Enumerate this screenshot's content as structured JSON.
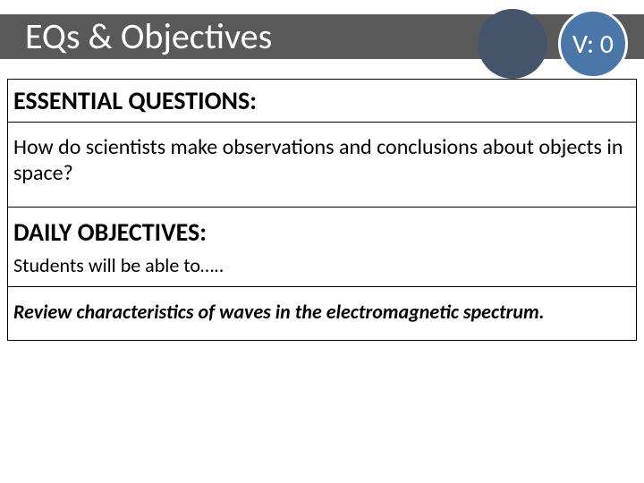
{
  "header": {
    "title": "EQs & Objectives",
    "badge_text": "V: 0",
    "bar_color": "#595959",
    "circle_dark_color": "#44546a",
    "circle_blue_color": "#4a76a8",
    "circle_border_color": "#ffffff",
    "title_color": "#ffffff",
    "title_fontsize": 40,
    "badge_fontsize": 30
  },
  "sections": {
    "eq_header": "ESSENTIAL QUESTIONS:",
    "eq_body": "How do scientists make observations and conclusions about objects in space?",
    "obj_header": "DAILY OBJECTIVES:",
    "obj_sub": "Students will be able to…..",
    "obj_body": "Review characteristics of waves in the electromagnetic spectrum."
  },
  "style": {
    "border_color": "#000000",
    "background_color": "#ffffff",
    "text_color": "#000000",
    "header_fontsize": 28,
    "body_fontsize": 24,
    "sub_fontsize": 22,
    "objective_fontsize": 22
  }
}
